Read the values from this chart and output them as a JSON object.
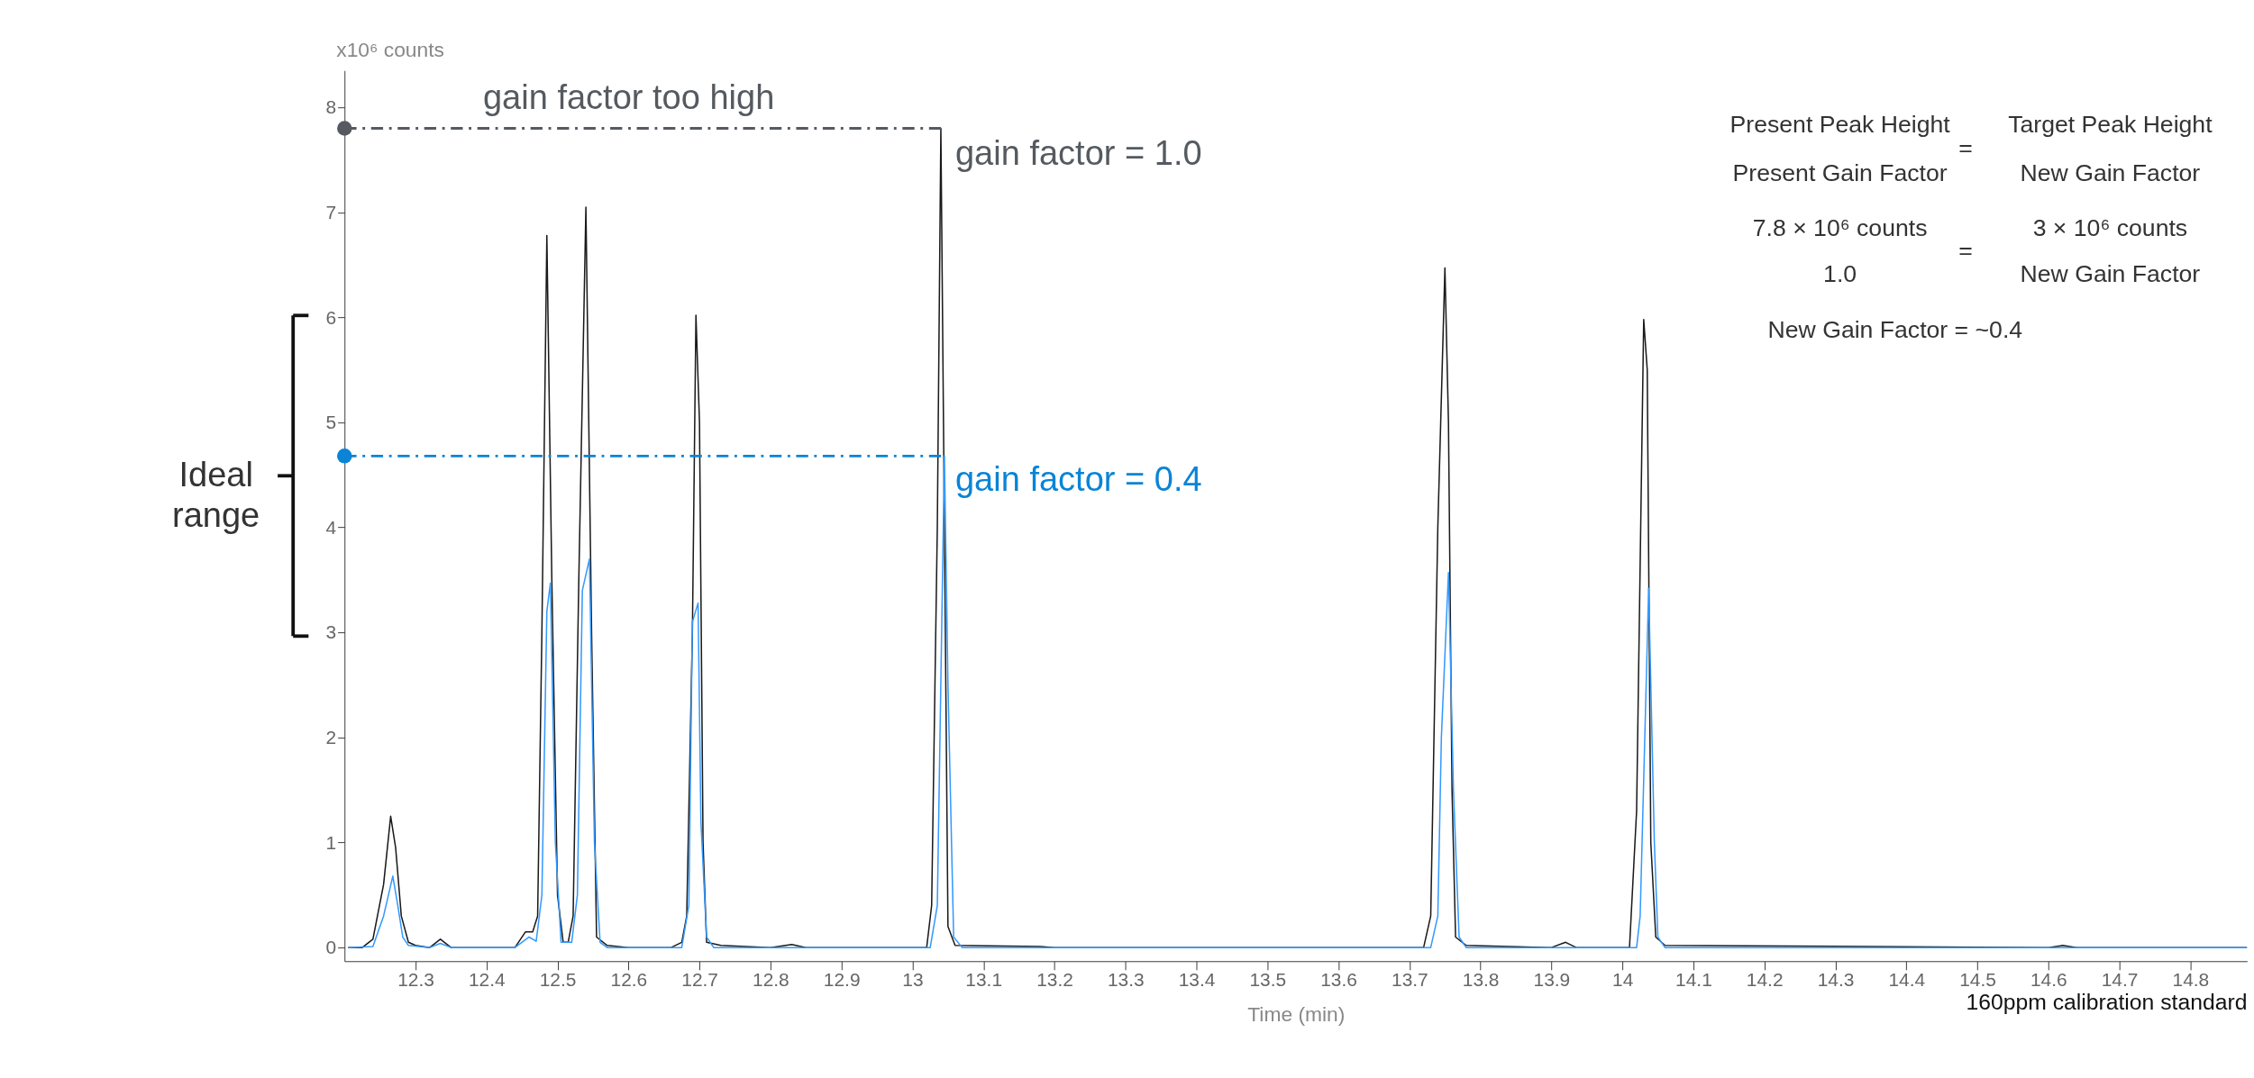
{
  "chart_data": {
    "type": "line",
    "xlabel": "Time (min)",
    "ylabel": "x10⁶ counts",
    "xlim": [
      12.2,
      14.88
    ],
    "ylim": [
      -0.13,
      8.35
    ],
    "xticks": [
      12.3,
      12.4,
      12.5,
      12.6,
      12.7,
      12.8,
      12.9,
      13,
      13.1,
      13.2,
      13.3,
      13.4,
      13.5,
      13.6,
      13.7,
      13.8,
      13.9,
      14,
      14.1,
      14.2,
      14.3,
      14.4,
      14.5,
      14.6,
      14.7,
      14.8
    ],
    "yticks": [
      0,
      1,
      2,
      3,
      4,
      5,
      6,
      7,
      8
    ],
    "grid": false,
    "marker": "none",
    "series": [
      {
        "color": "#1a1a1a",
        "x": [
          12.205,
          12.225,
          12.24,
          12.255,
          12.265,
          12.272,
          12.28,
          12.29,
          12.3,
          12.32,
          12.335,
          12.35,
          12.44,
          12.455,
          12.465,
          12.472,
          12.478,
          12.485,
          12.492,
          12.5,
          12.508,
          12.515,
          12.522,
          12.53,
          12.54,
          12.548,
          12.555,
          12.57,
          12.6,
          12.66,
          12.675,
          12.682,
          12.69,
          12.695,
          12.7,
          12.705,
          12.71,
          12.73,
          12.8,
          12.83,
          12.85,
          13.02,
          13.027,
          13.035,
          13.04,
          13.045,
          13.05,
          13.06,
          13.18,
          13.2,
          13.72,
          13.73,
          13.74,
          13.75,
          13.755,
          13.76,
          13.765,
          13.78,
          13.9,
          13.92,
          13.935,
          14.01,
          14.02,
          14.03,
          14.035,
          14.04,
          14.047,
          14.06,
          14.6,
          14.62,
          14.64,
          14.88
        ],
        "values": [
          0,
          0,
          0.08,
          0.6,
          1.25,
          0.95,
          0.3,
          0.05,
          0.02,
          0,
          0.08,
          0,
          0,
          0.15,
          0.15,
          0.3,
          3.0,
          6.78,
          3.5,
          0.5,
          0.05,
          0.05,
          0.3,
          3.5,
          7.05,
          3.0,
          0.1,
          0.02,
          0,
          0,
          0.05,
          0.3,
          3.0,
          6.02,
          5.0,
          1.0,
          0.05,
          0.02,
          0,
          0.03,
          0,
          0,
          0.4,
          4.0,
          7.8,
          4.0,
          0.2,
          0.02,
          0.01,
          0,
          0,
          0.3,
          4.0,
          6.47,
          5.0,
          1.5,
          0.1,
          0.02,
          0,
          0.05,
          0,
          0,
          1.3,
          5.98,
          5.5,
          1.0,
          0.1,
          0.02,
          0,
          0.02,
          0,
          0
        ]
      },
      {
        "color": "#3399ff",
        "x": [
          12.205,
          12.24,
          12.255,
          12.268,
          12.275,
          12.282,
          12.29,
          12.32,
          12.335,
          12.35,
          12.44,
          12.46,
          12.47,
          12.478,
          12.485,
          12.49,
          12.497,
          12.505,
          12.52,
          12.528,
          12.535,
          12.545,
          12.552,
          12.56,
          12.57,
          12.675,
          12.685,
          12.69,
          12.698,
          12.702,
          12.71,
          12.72,
          13.025,
          13.035,
          13.045,
          13.05,
          13.058,
          13.07,
          13.73,
          13.74,
          13.745,
          13.755,
          13.762,
          13.77,
          13.78,
          14.02,
          14.025,
          14.037,
          14.045,
          14.05,
          14.06,
          14.88
        ],
        "values": [
          0,
          0.01,
          0.3,
          0.68,
          0.4,
          0.1,
          0.02,
          0,
          0.04,
          0,
          0,
          0.1,
          0.06,
          0.5,
          3.2,
          3.47,
          1.0,
          0.05,
          0.05,
          0.5,
          3.4,
          3.7,
          1.0,
          0.05,
          0,
          0,
          0.4,
          3.1,
          3.28,
          1.2,
          0.1,
          0,
          0,
          0.4,
          4.68,
          2.5,
          0.1,
          0,
          0,
          0.3,
          2.0,
          3.57,
          1.5,
          0.1,
          0,
          0,
          0.3,
          3.42,
          1.0,
          0.1,
          0,
          0
        ]
      },
      {
        "type": "line",
        "color": "#555a60",
        "line_style": "dashed",
        "x": [
          12.2,
          13.04
        ],
        "values": [
          7.8,
          7.8
        ]
      },
      {
        "type": "line",
        "color": "#0a84d6",
        "line_style": "dashed",
        "x": [
          12.2,
          13.045
        ],
        "values": [
          4.68,
          4.68
        ]
      },
      {
        "type": "scatter",
        "marker": "circle",
        "color": "#555a60",
        "x": [
          12.2
        ],
        "values": [
          7.8
        ]
      },
      {
        "type": "scatter",
        "marker": "circle",
        "color": "#0a84d6",
        "x": [
          12.2
        ],
        "values": [
          4.68
        ]
      }
    ],
    "annotations": [
      "gain factor too high",
      "gain factor = 1.0",
      "gain factor = 0.4",
      "Ideal range",
      "Present Peak Height",
      "=",
      "Target Peak Height",
      "Present Gain Factor",
      "New Gain Factor",
      "7.8 × 10⁶ counts",
      "=",
      "3 × 10⁶ counts",
      "1.0",
      "New Gain Factor",
      "New Gain Factor = ~0.4",
      "160ppm calibration standard"
    ]
  }
}
